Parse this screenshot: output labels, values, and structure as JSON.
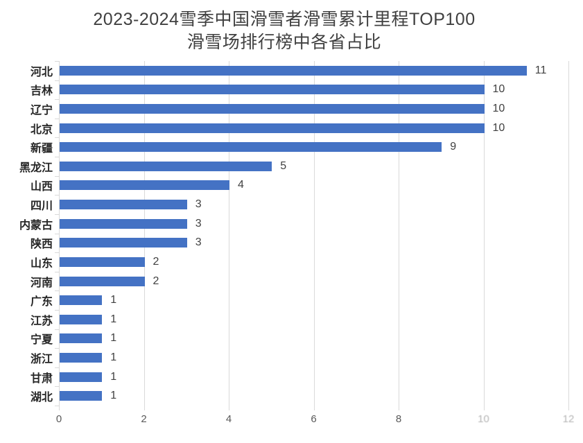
{
  "title": {
    "line1": "2023-2024雪季中国滑雪者滑雪累计里程TOP100",
    "line2": "滑雪场排行榜中各省占比"
  },
  "chart_data": {
    "type": "bar",
    "orientation": "horizontal",
    "title": "2023-2024雪季中国滑雪者滑雪累计里程TOP100 滑雪场排行榜中各省占比",
    "categories": [
      "河北",
      "吉林",
      "辽宁",
      "北京",
      "新疆",
      "黑龙江",
      "山西",
      "四川",
      "内蒙古",
      "陕西",
      "山东",
      "河南",
      "广东",
      "江苏",
      "宁夏",
      "浙江",
      "甘肃",
      "湖北"
    ],
    "values": [
      11,
      10,
      10,
      10,
      9,
      5,
      4,
      3,
      3,
      3,
      2,
      2,
      1,
      1,
      1,
      1,
      1,
      1
    ],
    "data_labels": [
      "11",
      "10",
      "10",
      "10",
      "9",
      "5",
      "4",
      "3",
      "3",
      "3",
      "2",
      "2",
      "1",
      "1",
      "1",
      "1",
      "1",
      "1"
    ],
    "xlabel": "",
    "ylabel": "",
    "xlim": [
      0,
      12
    ],
    "x_ticks": [
      "0",
      "2",
      "4",
      "6",
      "8",
      "10",
      "12"
    ],
    "x_tick_values": [
      0,
      2,
      4,
      6,
      8,
      10,
      12
    ],
    "faded_tick_labels": [
      "10",
      "12"
    ],
    "grid": true,
    "legend": false,
    "bar_color": "#4472C4",
    "gridline_color": "#D9D9D9",
    "axis_color": "#D9D9D9",
    "category_label_color": "#262626",
    "value_label_color": "#404040",
    "tick_label_color": "#595959"
  }
}
